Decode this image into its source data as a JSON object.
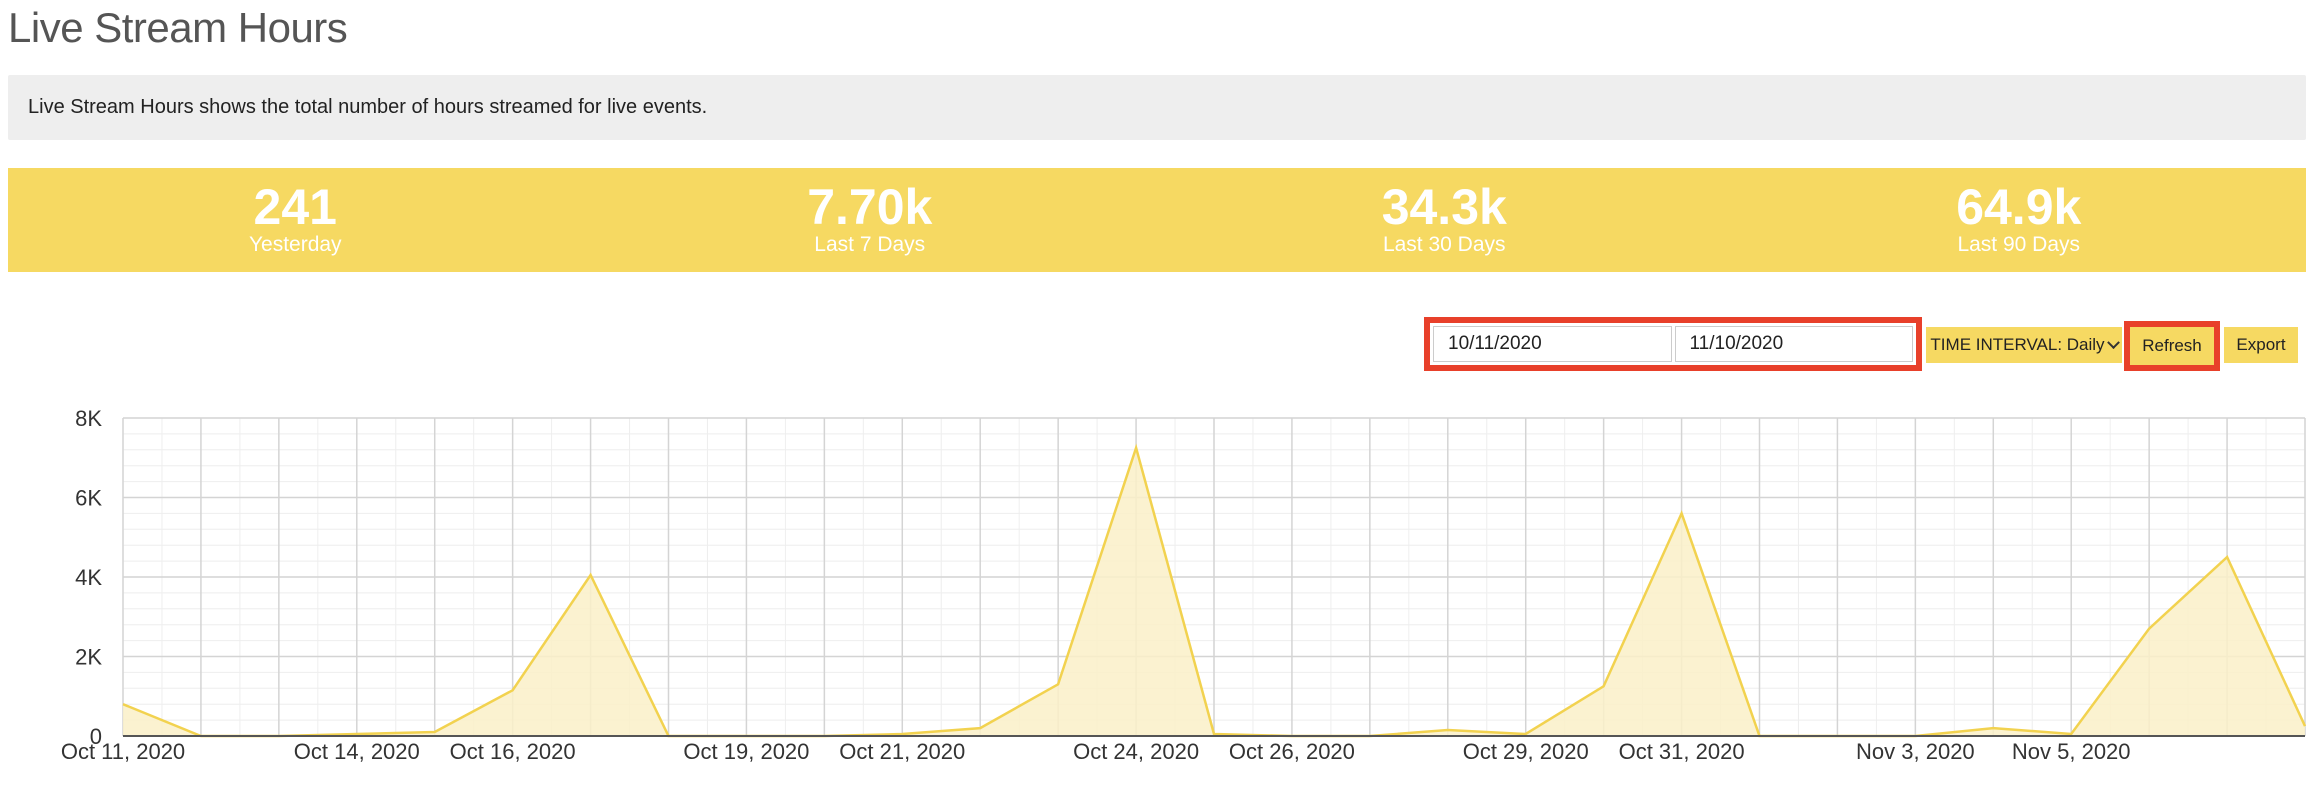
{
  "page": {
    "title": "Live Stream Hours",
    "description": "Live Stream Hours shows the total number of hours streamed for live events."
  },
  "stats": [
    {
      "value": "241",
      "label": "Yesterday"
    },
    {
      "value": "7.70k",
      "label": "Last 7 Days"
    },
    {
      "value": "34.3k",
      "label": "Last 30 Days"
    },
    {
      "value": "64.9k",
      "label": "Last 90 Days"
    }
  ],
  "toolbar": {
    "start_date": "10/11/2020",
    "end_date": "11/10/2020",
    "interval_label": "TIME INTERVAL: Daily",
    "refresh_label": "Refresh",
    "export_label": "Export"
  },
  "colors": {
    "accent": "#f6d962",
    "highlight": "#e8402a",
    "line": "#f2d24f",
    "area": "#faf0c8"
  },
  "chart_data": {
    "type": "area",
    "x": [
      "Oct 11, 2020",
      "Oct 12, 2020",
      "Oct 13, 2020",
      "Oct 14, 2020",
      "Oct 15, 2020",
      "Oct 16, 2020",
      "Oct 17, 2020",
      "Oct 18, 2020",
      "Oct 19, 2020",
      "Oct 20, 2020",
      "Oct 21, 2020",
      "Oct 22, 2020",
      "Oct 23, 2020",
      "Oct 24, 2020",
      "Oct 25, 2020",
      "Oct 26, 2020",
      "Oct 27, 2020",
      "Oct 28, 2020",
      "Oct 29, 2020",
      "Oct 30, 2020",
      "Oct 31, 2020",
      "Nov 1, 2020",
      "Nov 2, 2020",
      "Nov 3, 2020",
      "Nov 4, 2020",
      "Nov 5, 2020",
      "Nov 6, 2020",
      "Nov 7, 2020",
      "Nov 8, 2020"
    ],
    "values": [
      800,
      0,
      0,
      50,
      100,
      1150,
      4050,
      0,
      0,
      0,
      50,
      200,
      1300,
      7250,
      50,
      0,
      0,
      150,
      50,
      1250,
      5600,
      0,
      0,
      0,
      200,
      50,
      2700,
      4500,
      250
    ],
    "x_tick_labels": [
      "Oct 11, 2020",
      "Oct 14, 2020",
      "Oct 16, 2020",
      "Oct 19, 2020",
      "Oct 21, 2020",
      "Oct 24, 2020",
      "Oct 26, 2020",
      "Oct 29, 2020",
      "Oct 31, 2020",
      "Nov 3, 2020",
      "Nov 5, 2020"
    ],
    "y_tick_labels": [
      "0",
      "2K",
      "4K",
      "6K",
      "8K"
    ],
    "ylim": [
      0,
      8000
    ],
    "grid": true,
    "title": "",
    "xlabel": "",
    "ylabel": ""
  }
}
